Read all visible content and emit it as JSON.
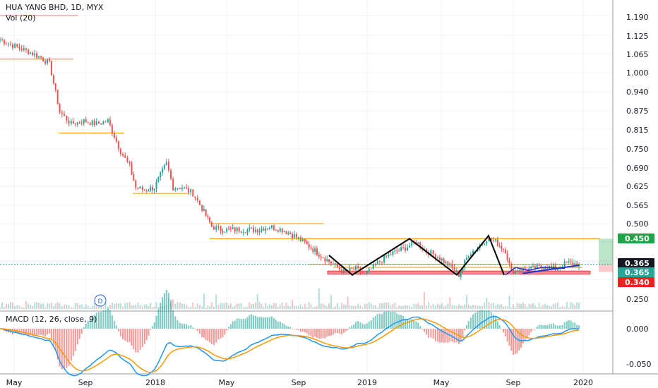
{
  "header": {
    "symbol": "HUA YANG BHD, 1D, MYX",
    "volume_indicator": "Vol (20)"
  },
  "macd": {
    "label": "MACD (12, 26, close, 9)",
    "y_ticks": [
      "0.000",
      "-0.050"
    ]
  },
  "price_axis": {
    "ticks": [
      "1.190",
      "1.125",
      "1.065",
      "1.000",
      "0.940",
      "0.875",
      "0.815",
      "0.750",
      "0.690",
      "0.625",
      "0.565",
      "0.500",
      "0.450",
      "0.365",
      "0.365",
      "0.340",
      "0.250"
    ]
  },
  "time_axis": {
    "ticks": [
      "May",
      "Sep",
      "2018",
      "May",
      "Sep",
      "2019",
      "May",
      "Sep",
      "2020"
    ]
  },
  "price_badges": [
    {
      "text": "0.450",
      "color": "#1ea54a"
    },
    {
      "text": "0.365",
      "color": "#131722"
    },
    {
      "text": "0.365",
      "color": "#26a69a"
    },
    {
      "text": "0.340",
      "color": "#ef2020"
    }
  ],
  "event_marker": "D",
  "colors": {
    "up": "#26a69a",
    "down": "#ef5350",
    "level_line": "#f5a623",
    "pattern": "#000000",
    "trend": "#1f2fc7",
    "support_zone": "#f47c7c",
    "macd_line": "#2196f3",
    "signal_line": "#ff9800"
  },
  "chart_data": {
    "type": "line",
    "title": "HUA YANG BHD, 1D, MYX",
    "y_scale": "price",
    "series": [
      {
        "x": [
          "2017-04-24",
          "2017-05-15",
          "2017-06-10",
          "2017-07-01",
          "2017-07-15",
          "2017-08-01",
          "2017-08-20",
          "2017-09-10",
          "2017-10-01",
          "2017-10-20",
          "2017-11-10",
          "2017-11-25",
          "2017-12-05",
          "2017-12-20",
          "2018-01-05",
          "2018-01-25",
          "2018-02-05",
          "2018-02-20",
          "2018-03-10",
          "2018-03-25",
          "2018-04-10",
          "2018-04-25",
          "2018-05-15",
          "2018-06-05",
          "2018-06-25",
          "2018-07-15",
          "2018-08-05",
          "2018-08-25",
          "2018-09-15",
          "2018-10-05",
          "2018-10-25",
          "2018-11-15",
          "2018-12-05",
          "2018-12-20",
          "2019-01-10",
          "2019-02-01",
          "2019-02-25",
          "2019-03-15",
          "2019-04-01",
          "2019-04-20",
          "2019-05-10",
          "2019-05-25",
          "2019-06-10",
          "2019-06-25",
          "2019-07-10",
          "2019-07-25",
          "2019-08-10",
          "2019-08-20",
          "2019-09-05",
          "2019-09-25",
          "2019-10-15",
          "2019-11-01",
          "2019-11-20",
          "2019-12-10"
        ],
        "values": [
          1.11,
          1.09,
          1.07,
          1.05,
          1.03,
          0.87,
          0.83,
          0.84,
          0.83,
          0.84,
          0.74,
          0.69,
          0.62,
          0.61,
          0.62,
          0.7,
          0.62,
          0.62,
          0.6,
          0.55,
          0.49,
          0.48,
          0.48,
          0.48,
          0.48,
          0.49,
          0.48,
          0.46,
          0.43,
          0.4,
          0.37,
          0.34,
          0.35,
          0.33,
          0.37,
          0.4,
          0.42,
          0.44,
          0.41,
          0.39,
          0.36,
          0.33,
          0.4,
          0.42,
          0.45,
          0.44,
          0.41,
          0.34,
          0.35,
          0.35,
          0.36,
          0.35,
          0.37,
          0.365
        ]
      }
    ],
    "volume": {
      "name": "Vol (20)"
    },
    "macd": {
      "name": "MACD (12, 26, close, 9)",
      "params": [
        12,
        26,
        9
      ],
      "range": [
        -0.065,
        0.02
      ]
    },
    "horizontal_levels": [
      1.19,
      1.045,
      0.8,
      0.6,
      0.5,
      0.45,
      0.365,
      0.34
    ],
    "support_zone": [
      0.333,
      0.343
    ],
    "long_position": {
      "entry": 0.365,
      "target": 0.45,
      "stop": 0.34
    },
    "ylim": [
      0.22,
      1.21
    ],
    "legend": "top-left"
  }
}
